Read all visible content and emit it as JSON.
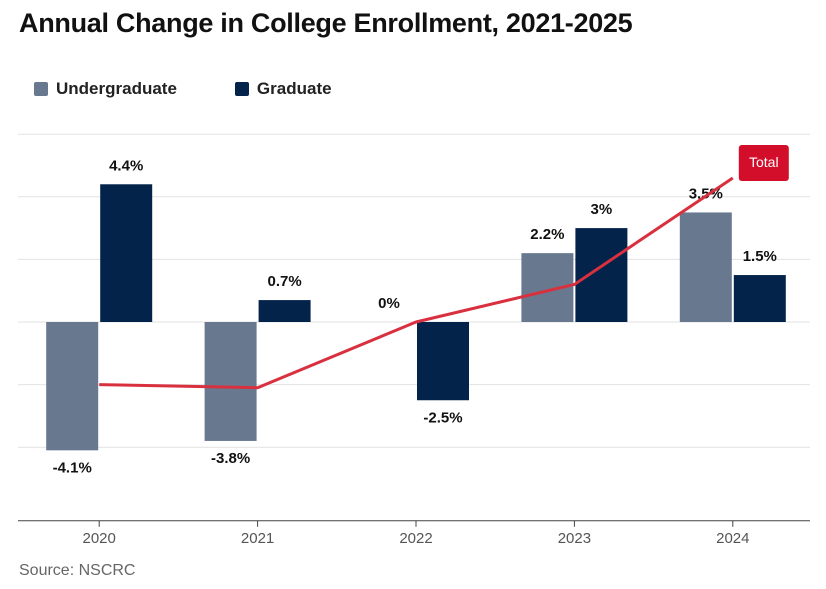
{
  "title": "Annual Change in College Enrollment, 2021-2025",
  "source": "Source: NSCRC",
  "colors": {
    "undergraduate": "#68798f",
    "graduate": "#03234b",
    "total": "#d9303f",
    "total_label_bg": "#d30e2a",
    "grid": "#e2e2e2",
    "axis": "#444444"
  },
  "chart_data": {
    "type": "bar",
    "title": "Annual Change in College Enrollment, 2021-2025",
    "xlabel": "",
    "ylabel": "",
    "categories": [
      "2020",
      "2021",
      "2022",
      "2023",
      "2024"
    ],
    "series": [
      {
        "name": "Undergraduate",
        "values": [
          -4.1,
          -3.8,
          null,
          2.2,
          3.5
        ],
        "labels": [
          "-4.1%",
          "-3.8%",
          "",
          "2.2%",
          "3.5%"
        ]
      },
      {
        "name": "Graduate",
        "values": [
          4.4,
          0.7,
          -2.5,
          3,
          1.5
        ],
        "labels": [
          "4.4%",
          "0.7%",
          "-2.5%",
          "3%",
          "1.5%"
        ]
      }
    ],
    "extra_labels": [
      {
        "category": "2022",
        "text": "0%"
      }
    ],
    "line": {
      "name": "Total",
      "values": [
        -2.0,
        -2.1,
        0.0,
        1.2,
        4.6
      ]
    },
    "ylim": [
      -6,
      6
    ],
    "grid": true,
    "legend": "top-left"
  }
}
